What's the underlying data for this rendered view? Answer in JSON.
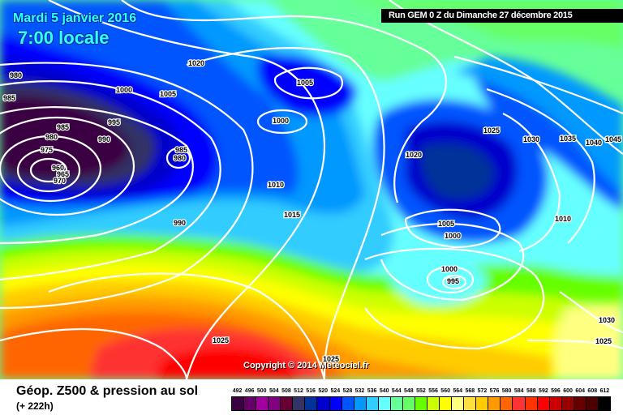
{
  "header": {
    "date": "Mardi 5 janvier 2016",
    "time": "7:00 locale",
    "run": "Run GEM 0 Z du Dimanche 27 décembre 2015"
  },
  "copyright": "Copyright © 2014 Meteociel.fr",
  "footer": {
    "title": "Géop. Z500 & pression au sol",
    "subtitle": "(+ 222h)"
  },
  "pressure_labels": [
    "980",
    "985",
    "1000",
    "1005",
    "1020",
    "1005",
    "1000",
    "995",
    "990",
    "985",
    "980",
    "975",
    "960",
    "965",
    "970",
    "985",
    "980",
    "1010",
    "1015",
    "990",
    "1025",
    "1025",
    "1020",
    "1025",
    "1030",
    "1035",
    "1040",
    "1045",
    "1005",
    "1000",
    "1010",
    "1000",
    "995",
    "1030",
    "1025"
  ],
  "legend": {
    "values": [
      "492",
      "496",
      "500",
      "504",
      "508",
      "512",
      "516",
      "520",
      "524",
      "528",
      "532",
      "536",
      "540",
      "544",
      "548",
      "552",
      "556",
      "560",
      "564",
      "568",
      "572",
      "576",
      "580",
      "584",
      "588",
      "592",
      "596",
      "600",
      "604",
      "608",
      "612"
    ],
    "colors": [
      "#3a0042",
      "#660066",
      "#a000a0",
      "#800080",
      "#660033",
      "#333366",
      "#003399",
      "#0000cc",
      "#0000ff",
      "#0055ff",
      "#0099ff",
      "#33ccff",
      "#66ffff",
      "#66ff99",
      "#66ff66",
      "#66ff00",
      "#ccff00",
      "#ffff00",
      "#ffff80",
      "#ffe040",
      "#ffcc00",
      "#ff9900",
      "#ff6600",
      "#ff3333",
      "#ff3300",
      "#ff0000",
      "#cc0000",
      "#990000",
      "#660000",
      "#4d0000",
      "#000000"
    ]
  }
}
